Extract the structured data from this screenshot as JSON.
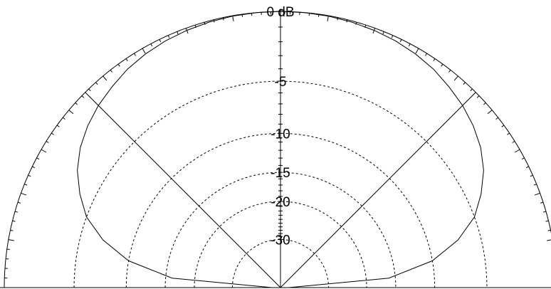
{
  "chart_data": {
    "type": "polar",
    "scale": "arrl-log",
    "color": "#000000",
    "angles": [
      0,
      5,
      10,
      15,
      20,
      25,
      30,
      35,
      40,
      45,
      50,
      55,
      60,
      65,
      70,
      75,
      80,
      85,
      90,
      95,
      100,
      105,
      110,
      115,
      120,
      125,
      130,
      135,
      140,
      145,
      150,
      155,
      160,
      165,
      170,
      175,
      180
    ],
    "values": [
      -60,
      -16,
      -10,
      -7,
      -5,
      -3.8,
      -2.8,
      -2.1,
      -1.6,
      -1.2,
      -0.9,
      -0.6,
      -0.4,
      -0.25,
      -0.15,
      -0.08,
      -0.03,
      -0.01,
      0,
      -0.01,
      -0.03,
      -0.08,
      -0.15,
      -0.25,
      -0.4,
      -0.6,
      -0.9,
      -1.2,
      -1.6,
      -2.1,
      -2.8,
      -3.8,
      -5,
      -7,
      -10,
      -16,
      -60
    ],
    "rticks": [
      {
        "value": 0,
        "label": "0 dB"
      },
      -5,
      -10,
      -15,
      -20,
      -30
    ],
    "angle_grid": [
      45,
      90,
      135
    ]
  }
}
